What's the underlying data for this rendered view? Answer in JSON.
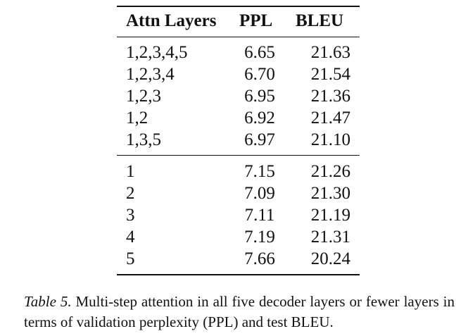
{
  "table": {
    "headers": {
      "layers": "Attn Layers",
      "ppl": "PPL",
      "bleu": "BLEU"
    },
    "group1": [
      {
        "layers": "1,2,3,4,5",
        "ppl": "6.65",
        "bleu": "21.63"
      },
      {
        "layers": "1,2,3,4",
        "ppl": "6.70",
        "bleu": "21.54"
      },
      {
        "layers": "1,2,3",
        "ppl": "6.95",
        "bleu": "21.36"
      },
      {
        "layers": "1,2",
        "ppl": "6.92",
        "bleu": "21.47"
      },
      {
        "layers": "1,3,5",
        "ppl": "6.97",
        "bleu": "21.10"
      }
    ],
    "group2": [
      {
        "layers": "1",
        "ppl": "7.15",
        "bleu": "21.26"
      },
      {
        "layers": "2",
        "ppl": "7.09",
        "bleu": "21.30"
      },
      {
        "layers": "3",
        "ppl": "7.11",
        "bleu": "21.19"
      },
      {
        "layers": "4",
        "ppl": "7.19",
        "bleu": "21.31"
      },
      {
        "layers": "5",
        "ppl": "7.66",
        "bleu": "20.24"
      }
    ]
  },
  "caption": {
    "label": "Table 5.",
    "text": "Multi-step attention in all five decoder layers or fewer layers in terms of validation perplexity (PPL) and test BLEU."
  }
}
